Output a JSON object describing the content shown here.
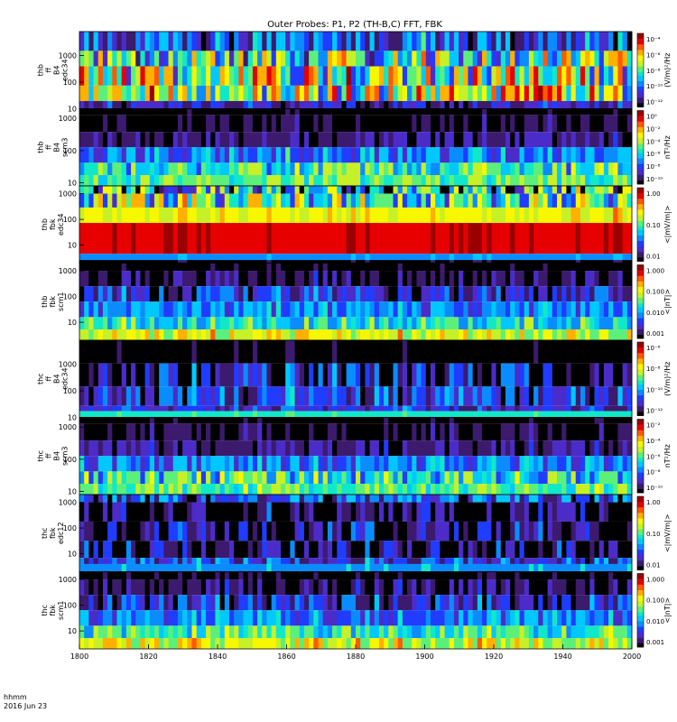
{
  "title": "Outer Probes: P1, P2 (TH-B,C) FFT, FBK",
  "footer": {
    "time_label": "hhmm",
    "date_label": "2016 Jun 23"
  },
  "x_axis": {
    "ticks": [
      "1800",
      "1820",
      "1840",
      "1860",
      "1880",
      "1900",
      "1920",
      "1940",
      "2000"
    ]
  },
  "chart_data": {
    "type": "heatmap",
    "title": "Outer Probes: P1, P2 (TH-B,C) FFT, FBK",
    "x_range": [
      "1800",
      "2000"
    ],
    "panels": [
      {
        "label": [
          "thb",
          "ff",
          "B4",
          "edc34"
        ],
        "yticks": [
          "1000",
          "100",
          "10"
        ],
        "ylog": true,
        "yrange": [
          10,
          8000
        ],
        "cbar_unit": "(V/m)²/Hz",
        "cbar_ticks": [
          "10⁻⁴",
          "10⁻⁶",
          "10⁻⁸",
          "10⁻¹⁰",
          "10⁻¹²"
        ],
        "pattern": "efield_fft_b"
      },
      {
        "label": [
          "thb",
          "ff",
          "B4",
          "scm3"
        ],
        "yticks": [
          "1000",
          "100",
          "10"
        ],
        "ylog": true,
        "yrange": [
          8,
          2000
        ],
        "cbar_unit": "nT²/Hz",
        "cbar_ticks": [
          "10⁰",
          "10⁻²",
          "10⁻⁴",
          "10⁻⁶",
          "10⁻⁸",
          "10⁻¹⁰"
        ],
        "pattern": "scm_fft"
      },
      {
        "label": [
          "thb",
          "fbk",
          "edc34"
        ],
        "yticks": [
          "1000",
          "100",
          "10"
        ],
        "ylog": true,
        "yrange": [
          2,
          2000
        ],
        "cbar_unit": "<|mV/m|>",
        "cbar_ticks": [
          "1.00",
          "0.10",
          "0.01"
        ],
        "pattern": "efield_fbk_b"
      },
      {
        "label": [
          "thb",
          "fbk",
          "scm1"
        ],
        "yticks": [
          "1000",
          "100",
          "10"
        ],
        "ylog": true,
        "yrange": [
          2,
          2000
        ],
        "cbar_unit": "<|nT|>",
        "cbar_ticks": [
          "1.000",
          "0.100",
          "0.010",
          "0.001"
        ],
        "pattern": "scm_fbk"
      },
      {
        "label": [
          "thc",
          "ff",
          "B4",
          "edc34"
        ],
        "yticks": [
          "1000",
          "100",
          "10"
        ],
        "ylog": true,
        "yrange": [
          10,
          8000
        ],
        "cbar_unit": "(V/m)²/Hz",
        "cbar_ticks": [
          "10⁻⁶",
          "10⁻⁸",
          "10⁻¹⁰",
          "10⁻¹²"
        ],
        "pattern": "efield_fft_c"
      },
      {
        "label": [
          "thc",
          "ff",
          "B4",
          "scm3"
        ],
        "yticks": [
          "1000",
          "100",
          "10"
        ],
        "ylog": true,
        "yrange": [
          8,
          2000
        ],
        "cbar_unit": "nT²/Hz",
        "cbar_ticks": [
          "10⁻²",
          "10⁻⁴",
          "10⁻⁶",
          "10⁻⁸",
          "10⁻¹⁰"
        ],
        "pattern": "scm_fft"
      },
      {
        "label": [
          "thc",
          "fbk",
          "edc12"
        ],
        "yticks": [
          "1000",
          "100",
          "10"
        ],
        "ylog": true,
        "yrange": [
          2,
          2000
        ],
        "cbar_unit": "<|mV/m|>",
        "cbar_ticks": [
          "1.00",
          "0.10",
          "0.01"
        ],
        "pattern": "efield_fbk_c"
      },
      {
        "label": [
          "thc",
          "fbk",
          "scm1"
        ],
        "yticks": [
          "1000",
          "100",
          "10"
        ],
        "ylog": true,
        "yrange": [
          2,
          2000
        ],
        "cbar_unit": "<|nT|>",
        "cbar_ticks": [
          "1.000",
          "0.100",
          "0.010",
          "0.001"
        ],
        "pattern": "scm_fbk"
      }
    ],
    "colormap": [
      "#000000",
      "#3c1a6e",
      "#4b2cc8",
      "#1f3cff",
      "#0a8cff",
      "#00c8ff",
      "#10e8c8",
      "#5cf07a",
      "#c6f028",
      "#f7f700",
      "#ffb000",
      "#ff5a00",
      "#e60000",
      "#9a0000"
    ]
  }
}
